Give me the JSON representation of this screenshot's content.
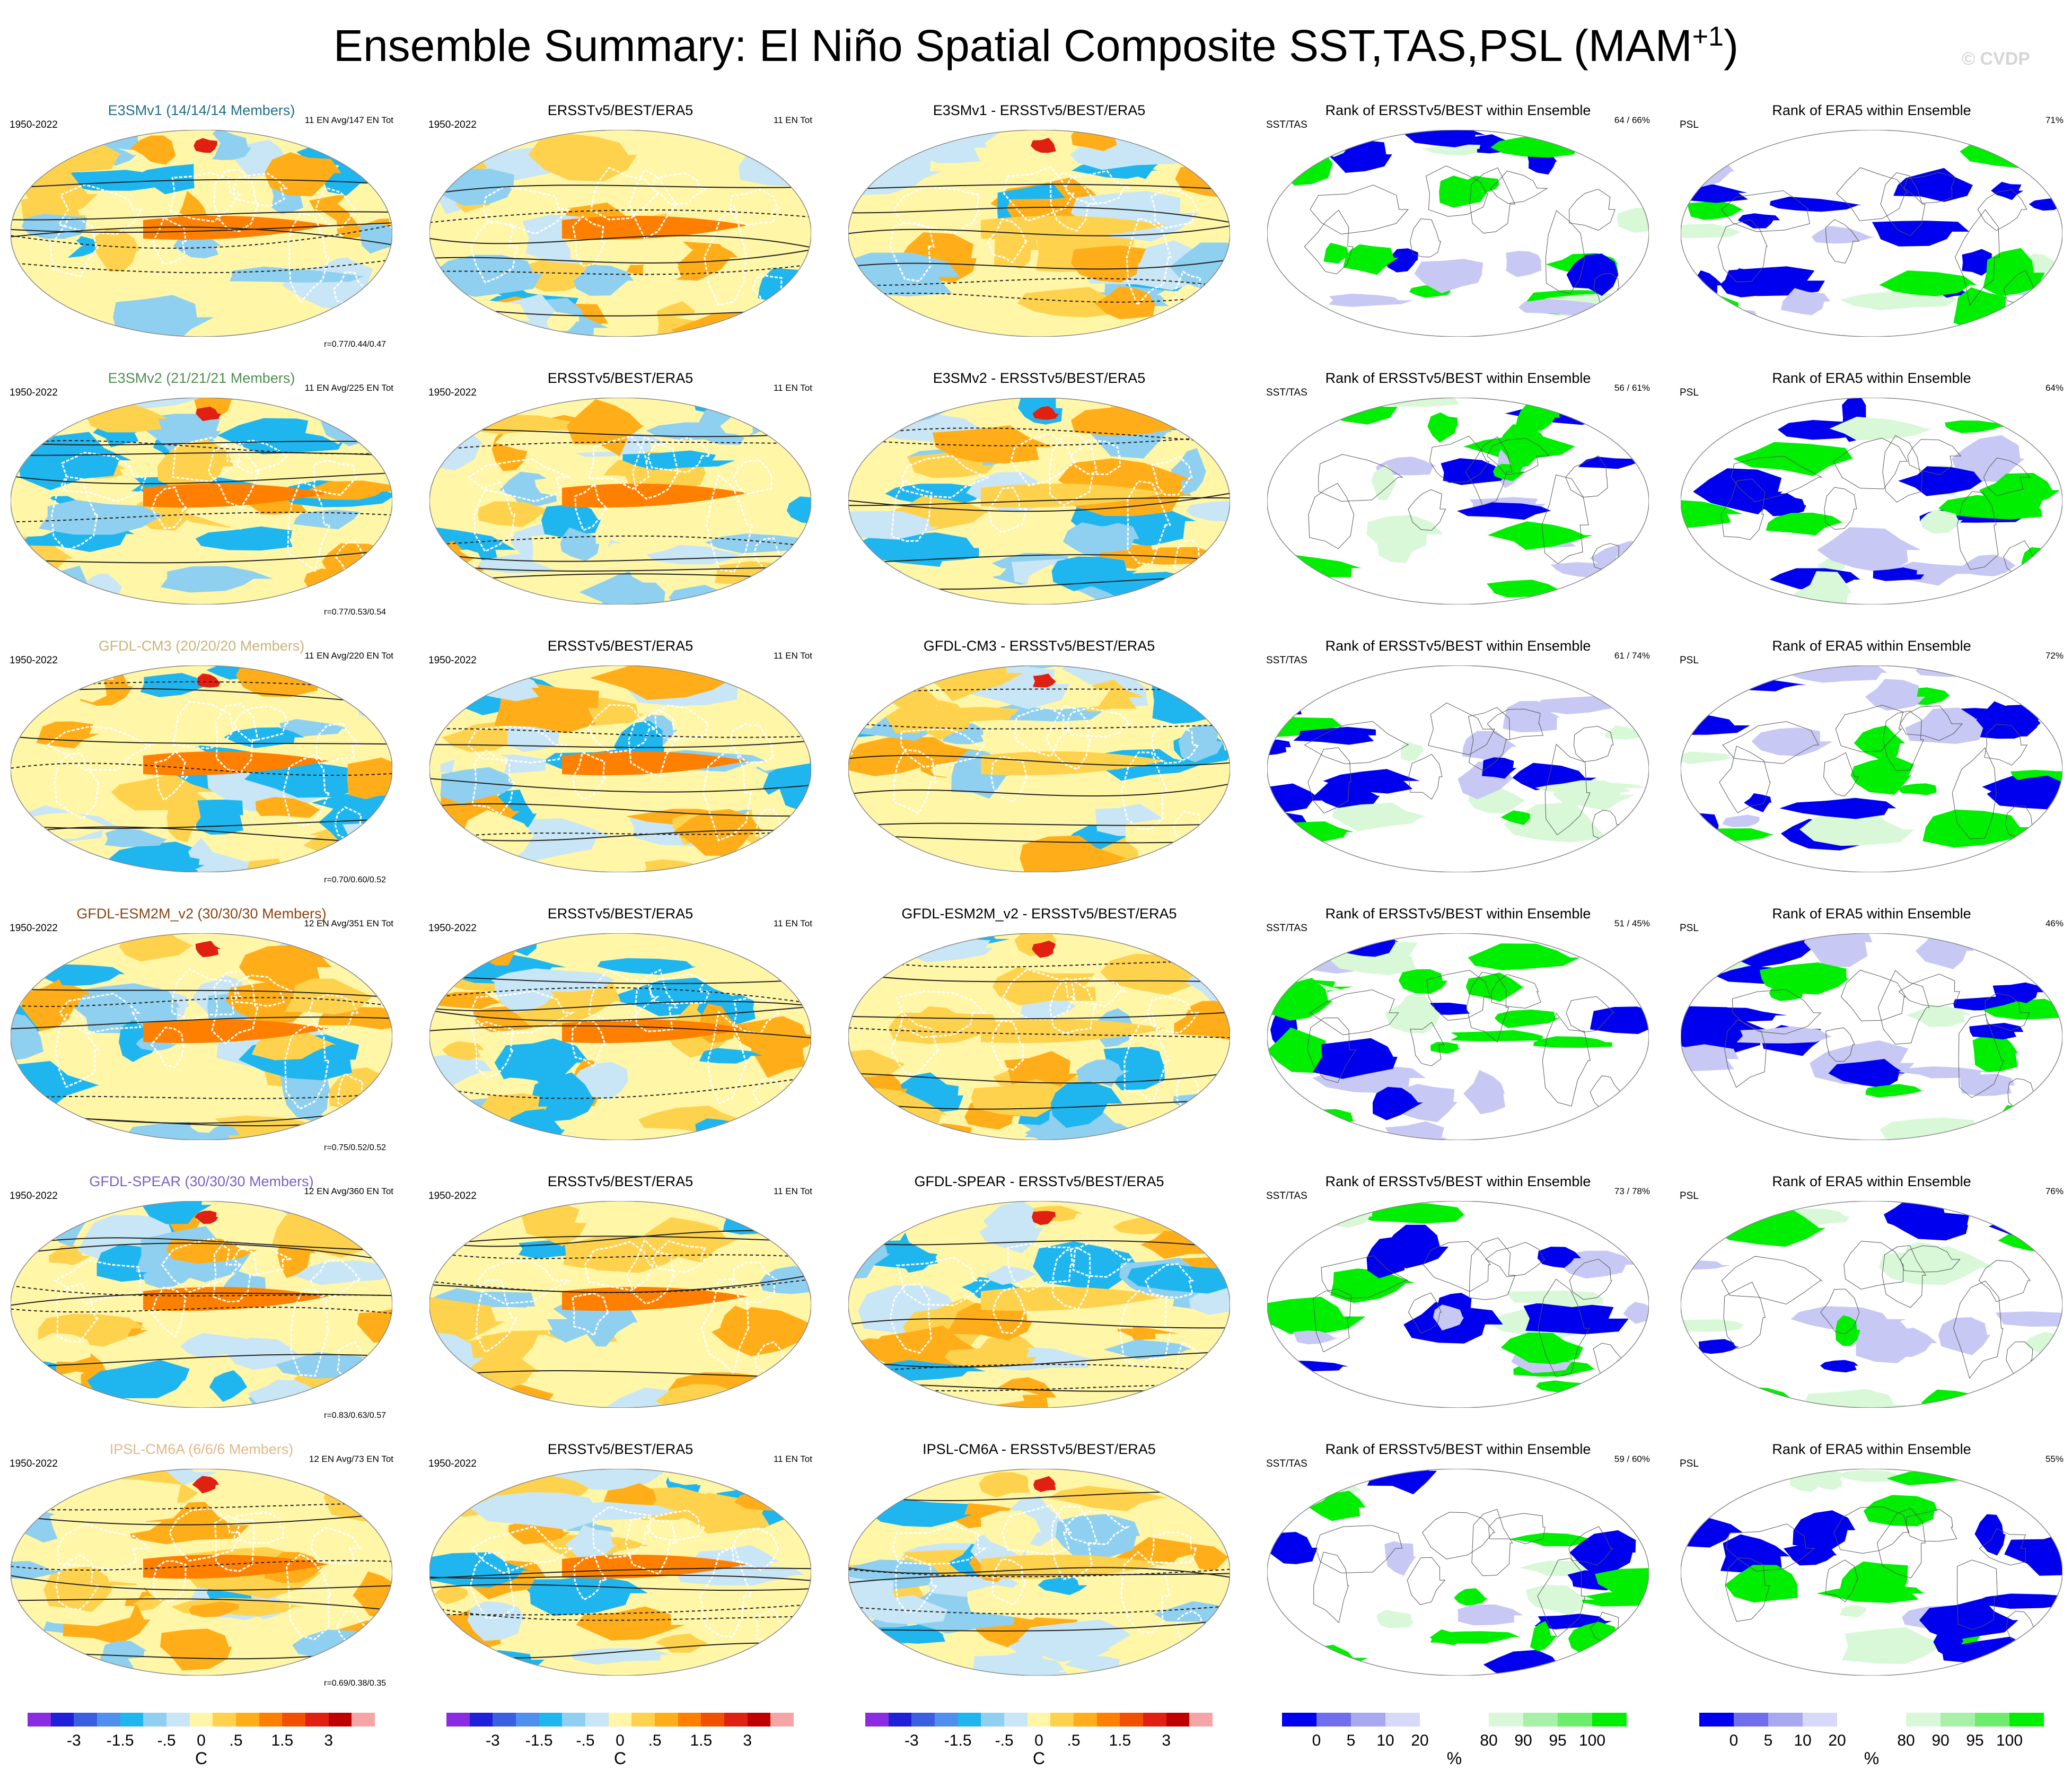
{
  "header": {
    "title": "Ensemble Summary: El Niño Spatial Composite SST,TAS,PSL (MAM",
    "title_sup": "+1",
    "title_close": ")",
    "watermark": "© CVDP"
  },
  "rows": [
    {
      "model": {
        "title": "E3SMv1 (14/14/14 Members)",
        "title_color": "#1f6f8b",
        "period": "1950-2022",
        "info": "11 EN Avg/147 EN Tot",
        "corr": "r=0.77/0.44/0.47"
      },
      "obs": {
        "title": "ERSSTv5/BEST/ERA5",
        "period": "1950-2022",
        "info": "11 EN Tot"
      },
      "diff": {
        "title": "E3SMv1 - ERSSTv5/BEST/ERA5"
      },
      "rank_sst": {
        "title": "Rank of ERSSTv5/BEST within Ensemble",
        "left": "SST/TAS",
        "pct": "64 /  66%"
      },
      "rank_psl": {
        "title": "Rank of ERA5 within Ensemble",
        "left": "PSL",
        "pct": "71%"
      }
    },
    {
      "model": {
        "title": "E3SMv2 (21/21/21 Members)",
        "title_color": "#4f8f4f",
        "period": "1950-2022",
        "info": "11 EN Avg/225 EN Tot",
        "corr": "r=0.77/0.53/0.54"
      },
      "obs": {
        "title": "ERSSTv5/BEST/ERA5",
        "period": "1950-2022",
        "info": "11 EN Tot"
      },
      "diff": {
        "title": "E3SMv2 - ERSSTv5/BEST/ERA5"
      },
      "rank_sst": {
        "title": "Rank of ERSSTv5/BEST within Ensemble",
        "left": "SST/TAS",
        "pct": "56 /  61%"
      },
      "rank_psl": {
        "title": "Rank of ERA5 within Ensemble",
        "left": "PSL",
        "pct": "64%"
      }
    },
    {
      "model": {
        "title": "GFDL-CM3 (20/20/20 Members)",
        "title_color": "#c8b47a",
        "period": "1950-2022",
        "info": "11 EN Avg/220 EN Tot",
        "corr": "r=0.70/0.60/0.52"
      },
      "obs": {
        "title": "ERSSTv5/BEST/ERA5",
        "period": "1950-2022",
        "info": "11 EN Tot"
      },
      "diff": {
        "title": "GFDL-CM3 - ERSSTv5/BEST/ERA5"
      },
      "rank_sst": {
        "title": "Rank of ERSSTv5/BEST within Ensemble",
        "left": "SST/TAS",
        "pct": "61 /  74%"
      },
      "rank_psl": {
        "title": "Rank of ERA5 within Ensemble",
        "left": "PSL",
        "pct": "72%"
      }
    },
    {
      "model": {
        "title": "GFDL-ESM2M_v2 (30/30/30 Members)",
        "title_color": "#8b4513",
        "period": "1950-2022",
        "info": "12 EN Avg/351 EN Tot",
        "corr": "r=0.75/0.52/0.52"
      },
      "obs": {
        "title": "ERSSTv5/BEST/ERA5",
        "period": "1950-2022",
        "info": "11 EN Tot"
      },
      "diff": {
        "title": "GFDL-ESM2M_v2 - ERSSTv5/BEST/ERA5"
      },
      "rank_sst": {
        "title": "Rank of ERSSTv5/BEST within Ensemble",
        "left": "SST/TAS",
        "pct": "51 /  45%"
      },
      "rank_psl": {
        "title": "Rank of ERA5 within Ensemble",
        "left": "PSL",
        "pct": "46%"
      }
    },
    {
      "model": {
        "title": "GFDL-SPEAR (30/30/30 Members)",
        "title_color": "#7b5fc4",
        "period": "1950-2022",
        "info": "12 EN Avg/360 EN Tot",
        "corr": "r=0.83/0.63/0.57"
      },
      "obs": {
        "title": "ERSSTv5/BEST/ERA5",
        "period": "1950-2022",
        "info": "11 EN Tot"
      },
      "diff": {
        "title": "GFDL-SPEAR - ERSSTv5/BEST/ERA5"
      },
      "rank_sst": {
        "title": "Rank of ERSSTv5/BEST within Ensemble",
        "left": "SST/TAS",
        "pct": "73 /  78%"
      },
      "rank_psl": {
        "title": "Rank of ERA5 within Ensemble",
        "left": "PSL",
        "pct": "76%"
      }
    },
    {
      "model": {
        "title": "IPSL-CM6A (6/6/6 Members)",
        "title_color": "#e0b88a",
        "period": "1950-2022",
        "info": "12 EN Avg/73 EN Tot",
        "corr": "r=0.69/0.38/0.35"
      },
      "obs": {
        "title": "ERSSTv5/BEST/ERA5",
        "period": "1950-2022",
        "info": "11 EN Tot"
      },
      "diff": {
        "title": "IPSL-CM6A - ERSSTv5/BEST/ERA5"
      },
      "rank_sst": {
        "title": "Rank of ERSSTv5/BEST within Ensemble",
        "left": "SST/TAS",
        "pct": "59 /  60%"
      },
      "rank_psl": {
        "title": "Rank of ERA5 within Ensemble",
        "left": "PSL",
        "pct": "55%"
      }
    }
  ],
  "colorbars": {
    "temp": {
      "colors": [
        "#8a2be2",
        "#2020d8",
        "#3a5fe0",
        "#4f8ff0",
        "#1fb6f0",
        "#8fd0f0",
        "#c8e6f5",
        "#fff6a8",
        "#ffd24d",
        "#ffae1a",
        "#ff8000",
        "#f05000",
        "#e02010",
        "#c00000",
        "#f5a5a5"
      ],
      "labels": [
        "-3",
        "-1.5",
        "-.5",
        "0",
        ".5",
        "1.5",
        "3"
      ],
      "unit": "C"
    },
    "rank": {
      "colors": [
        "#0000ee",
        "#6f6fee",
        "#a8a8f0",
        "#d8d8f8",
        "#ffffff",
        "#ffffff",
        "#d8f8d8",
        "#a8f0a8",
        "#6cee6c",
        "#00ee00"
      ],
      "labels": [
        "0",
        "5",
        "10",
        "20",
        "80",
        "90",
        "95",
        "100"
      ],
      "unit": "%"
    }
  },
  "palette": {
    "ocean_pos": [
      "#fff6a8",
      "#ffd24d",
      "#ffae1a",
      "#ff8000",
      "#e02010"
    ],
    "ocean_neg": [
      "#c8e6f5",
      "#8fd0f0",
      "#1fb6f0"
    ],
    "rank_blue": "#0000ee",
    "rank_lblue": "#c8c8f4",
    "rank_green": "#00ee00",
    "rank_lgreen": "#d8f8d8"
  }
}
